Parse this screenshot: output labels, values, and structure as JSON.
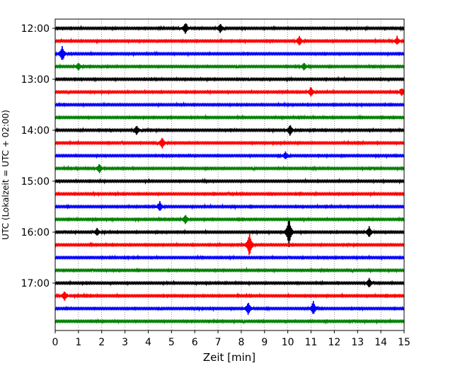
{
  "chart_data": {
    "type": "line",
    "xlabel": "Zeit  [min]",
    "ylabel": "UTC (Lokalzeit = UTC + 02:00)",
    "xlim": [
      0,
      15
    ],
    "x_ticks": [
      "0",
      "1",
      "2",
      "3",
      "4",
      "5",
      "6",
      "7",
      "8",
      "9",
      "10",
      "11",
      "12",
      "13",
      "14",
      "15"
    ],
    "y_ticks": [
      "12:00",
      "13:00",
      "14:00",
      "15:00",
      "16:00",
      "17:00"
    ],
    "grid_x": true,
    "trace_interval_min": 15,
    "first_trace": "12:00",
    "trace_count": 24,
    "color_cycle": [
      "#000000",
      "#ff0000",
      "#0000ff",
      "#008000"
    ],
    "events": [
      {
        "trace": 0,
        "t": 5.6,
        "amp": 0.6
      },
      {
        "trace": 0,
        "t": 7.1,
        "amp": 0.5
      },
      {
        "trace": 1,
        "t": 10.5,
        "amp": 0.5
      },
      {
        "trace": 1,
        "t": 14.7,
        "amp": 0.4
      },
      {
        "trace": 2,
        "t": 0.3,
        "amp": 0.8
      },
      {
        "trace": 3,
        "t": 1.0,
        "amp": 0.4
      },
      {
        "trace": 3,
        "t": 10.7,
        "amp": 0.4
      },
      {
        "trace": 5,
        "t": 11.0,
        "amp": 0.5
      },
      {
        "trace": 5,
        "t": 14.9,
        "amp": 0.4
      },
      {
        "trace": 8,
        "t": 3.5,
        "amp": 0.5
      },
      {
        "trace": 8,
        "t": 10.1,
        "amp": 0.6
      },
      {
        "trace": 9,
        "t": 4.6,
        "amp": 0.6
      },
      {
        "trace": 10,
        "t": 9.9,
        "amp": 0.4
      },
      {
        "trace": 11,
        "t": 1.9,
        "amp": 0.5
      },
      {
        "trace": 14,
        "t": 4.5,
        "amp": 0.5
      },
      {
        "trace": 15,
        "t": 5.6,
        "amp": 0.5
      },
      {
        "trace": 16,
        "t": 1.8,
        "amp": 0.4
      },
      {
        "trace": 16,
        "t": 10.05,
        "amp": 1.6
      },
      {
        "trace": 16,
        "t": 13.5,
        "amp": 0.6
      },
      {
        "trace": 17,
        "t": 8.35,
        "amp": 1.3
      },
      {
        "trace": 20,
        "t": 13.5,
        "amp": 0.5
      },
      {
        "trace": 21,
        "t": 0.4,
        "amp": 0.5
      },
      {
        "trace": 22,
        "t": 8.3,
        "amp": 0.7
      },
      {
        "trace": 22,
        "t": 11.1,
        "amp": 0.7
      }
    ]
  }
}
